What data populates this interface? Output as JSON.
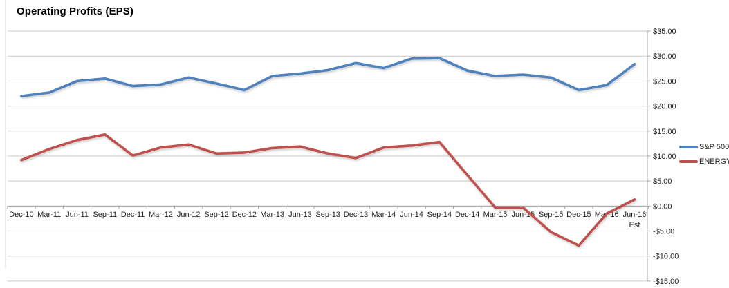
{
  "title": "Operating Profits (EPS)",
  "colors": {
    "sp500": "#4F81BD",
    "energy": "#C0504D",
    "gridline": "#C9C9C9",
    "axis": "#A6A6A6",
    "label_text": "#1f1f1f",
    "background": "#ffffff"
  },
  "legend": {
    "position": "right",
    "items": [
      {
        "label": "S&P 500",
        "color": "#4F81BD"
      },
      {
        "label": "ENERGY",
        "color": "#C0504D"
      }
    ]
  },
  "y_axis": {
    "side": "right",
    "tick_labels": [
      "$35.00",
      "$30.00",
      "$25.00",
      "$20.00",
      "$15.00",
      "$10.00",
      "$5.00",
      "$0.00",
      "-$5.00",
      "-$10.00",
      "-$15.00"
    ],
    "tick_values": [
      35,
      30,
      25,
      20,
      15,
      10,
      5,
      0,
      -5,
      -10,
      -15
    ]
  },
  "chart_data": {
    "type": "line",
    "title": "Operating Profits (EPS)",
    "xlabel": "",
    "ylabel": "",
    "ylim": [
      -15,
      35
    ],
    "y_tick_interval": 5,
    "grid": "horizontal",
    "legend_position": "right",
    "x_axis_crosses_at": 0,
    "categories": [
      "Dec-10",
      "Mar-11",
      "Jun-11",
      "Sep-11",
      "Dec-11",
      "Mar-12",
      "Jun-12",
      "Sep-12",
      "Dec-12",
      "Mar-13",
      "Jun-13",
      "Sep-13",
      "Dec-13",
      "Mar-14",
      "Jun-14",
      "Sep-14",
      "Dec-14",
      "Mar-15",
      "Jun-15",
      "Sep-15",
      "Dec-15",
      "Mar-16",
      "Jun-16 Est"
    ],
    "series": [
      {
        "name": "S&P 500",
        "color": "#4F81BD",
        "values": [
          22.0,
          22.7,
          25.0,
          25.5,
          24.0,
          24.3,
          25.7,
          24.5,
          23.2,
          26.0,
          26.5,
          27.2,
          28.6,
          27.6,
          29.5,
          29.6,
          27.1,
          26.0,
          26.3,
          25.7,
          23.2,
          24.2,
          28.4
        ]
      },
      {
        "name": "ENERGY",
        "color": "#C0504D",
        "values": [
          9.2,
          11.4,
          13.2,
          14.3,
          10.1,
          11.7,
          12.3,
          10.5,
          10.7,
          11.6,
          11.9,
          10.5,
          9.6,
          11.7,
          12.1,
          12.8,
          6.2,
          -0.3,
          -0.3,
          -5.2,
          -7.9,
          -1.5,
          1.3
        ]
      }
    ]
  }
}
